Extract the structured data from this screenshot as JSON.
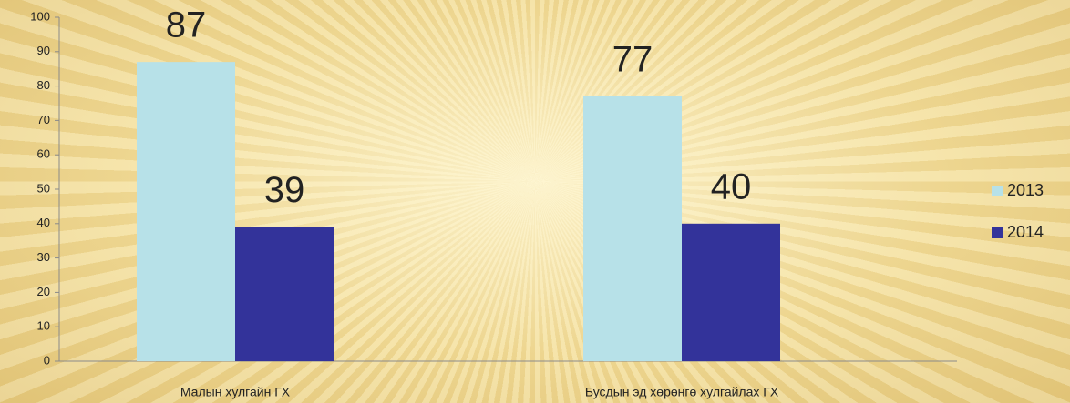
{
  "chart_data": {
    "type": "bar",
    "categories": [
      "Малын хулгайн ГХ",
      "Бусдын эд хөрөнгө хулгайлах ГХ"
    ],
    "series": [
      {
        "name": "2013",
        "color": "#b7e1e8",
        "values": [
          87,
          77
        ]
      },
      {
        "name": "2014",
        "color": "#33339a",
        "values": [
          39,
          40
        ]
      }
    ],
    "ylim": [
      0,
      100
    ],
    "yticks": [
      0,
      10,
      20,
      30,
      40,
      50,
      60,
      70,
      80,
      90,
      100
    ],
    "legend": "right"
  }
}
